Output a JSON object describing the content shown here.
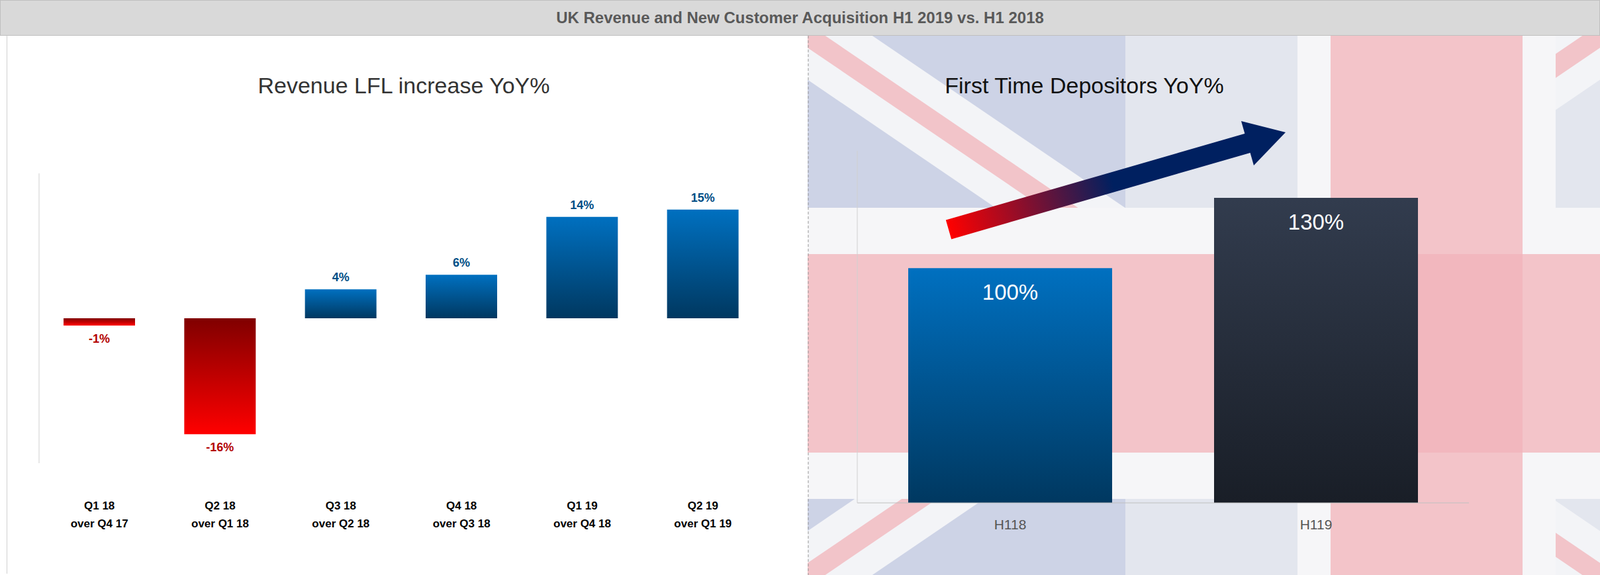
{
  "title": "UK Revenue and New Customer Acquisition H1 2019 vs. H1 2018",
  "chart_data": [
    {
      "type": "bar",
      "title": "Revenue LFL increase YoY%",
      "categories": [
        "Q1 18\nover Q4 17",
        "Q2 18\nover Q1 18",
        "Q3 18\nover Q2 18",
        "Q4 18\nover Q3 18",
        "Q1 19\nover Q4 18",
        "Q2 19\nover Q1 19"
      ],
      "values": [
        -1,
        -16,
        4,
        6,
        14,
        15
      ],
      "value_labels": [
        "-1%",
        "-16%",
        "4%",
        "6%",
        "14%",
        "15%"
      ],
      "colors": [
        "#ff0000",
        "#ff0000",
        "#0070c0",
        "#0070c0",
        "#0070c0",
        "#0070c0"
      ],
      "ylim": [
        -20,
        20
      ],
      "data_labels": true,
      "tick_labels": "x",
      "grid": false
    },
    {
      "type": "bar",
      "title": "First Time Depositors YoY%",
      "categories": [
        "H118",
        "H119"
      ],
      "values": [
        100,
        130
      ],
      "value_labels": [
        "100%",
        "130%"
      ],
      "colors": [
        "#0070c0",
        "#323c4e"
      ],
      "ylim": [
        0,
        150
      ],
      "data_labels": true,
      "tick_labels": "x",
      "grid": false
    }
  ]
}
